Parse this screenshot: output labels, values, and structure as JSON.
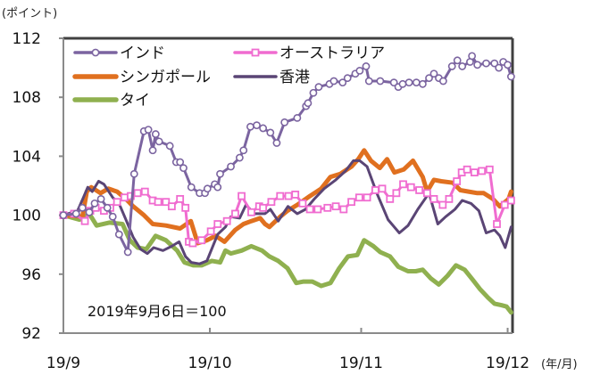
{
  "chart_data": {
    "type": "line",
    "title": "",
    "ylabel": "(ポイント)",
    "xlabel": "(年/月)",
    "ylim": [
      92,
      112
    ],
    "yticks": [
      92,
      96,
      100,
      104,
      108,
      112
    ],
    "ytick_labels": [
      "92",
      "96",
      "100",
      "104",
      "108",
      "112"
    ],
    "xlim": [
      0,
      92
    ],
    "xticks": [
      0,
      30,
      61,
      91
    ],
    "xtick_labels": [
      "19/9",
      "19/10",
      "19/11",
      "19/12"
    ],
    "annotation": "2019年9月6日＝100",
    "legend_position": "top-left",
    "grid": false,
    "series": [
      {
        "name": "インド",
        "color": "#7b64a0",
        "marker": "circle",
        "width": 3,
        "x": [
          0,
          2.6,
          3.9,
          5.3,
          6.4,
          7.7,
          9,
          10.1,
          11.4,
          13.2,
          14.5,
          16.5,
          17.4,
          18.3,
          18.9,
          19.6,
          21.8,
          23.1,
          23.9,
          24.6,
          26.2,
          27.9,
          29,
          29.5,
          31,
          31.6,
          32.1,
          34.3,
          36.1,
          36.9,
          38.3,
          39.6,
          40.9,
          42.4,
          43.7,
          45.3,
          47.9,
          49.7,
          50.1,
          51.2,
          52.3,
          54.5,
          55.4,
          57.2,
          58.2,
          59.8,
          60.7,
          62,
          62.6,
          64.9,
          67.7,
          68.6,
          69.5,
          70.8,
          72.3,
          73.6,
          74.9,
          75.9,
          76.9,
          77.8,
          79.6,
          80.7,
          81.7,
          83.3,
          83.7,
          84.8,
          86.6,
          88.3,
          89.2,
          90.1,
          91,
          91.7
        ],
        "y": [
          100,
          100.1,
          100.5,
          100.2,
          100.8,
          101.1,
          100.5,
          99.9,
          98.7,
          97.5,
          102.8,
          105.7,
          105.8,
          104.4,
          105.5,
          105,
          104.7,
          103.6,
          103.6,
          103.2,
          101.9,
          101.5,
          101.5,
          101.8,
          102.1,
          101.9,
          102.8,
          103.3,
          103.9,
          104.4,
          106,
          106.1,
          105.9,
          105.6,
          104.9,
          106.3,
          106.6,
          107.4,
          107.6,
          108.3,
          108.7,
          108.9,
          109.1,
          109,
          109.3,
          109.6,
          109.8,
          110.1,
          109.1,
          109.1,
          109,
          108.7,
          108.9,
          109,
          109,
          108.9,
          109.3,
          109.6,
          109.3,
          109.1,
          110.1,
          110.5,
          110.1,
          110.4,
          110.8,
          110.2,
          110.3,
          110.3,
          110,
          110.4,
          110.2,
          109.4
        ]
      },
      {
        "name": "オーストラリア",
        "color": "#f06cd0",
        "marker": "square",
        "width": 3,
        "x": [
          0,
          2.2,
          4.4,
          5.5,
          6.6,
          8.3,
          9.6,
          11,
          12.5,
          13.8,
          15.2,
          16.7,
          18.3,
          19.4,
          21,
          22.2,
          23.9,
          25,
          25.7,
          26.5,
          28.3,
          30.2,
          31.6,
          33.5,
          35.2,
          36.5,
          38.5,
          40.1,
          40.9,
          42.6,
          44.4,
          46.1,
          47.5,
          49,
          50.5,
          52.1,
          54.1,
          55.8,
          57.4,
          59,
          60.6,
          62.2,
          63.9,
          65.3,
          66.9,
          68.2,
          69.6,
          71.2,
          72.9,
          74.5,
          75.9,
          77.7,
          79,
          80.6,
          81.6,
          82.7,
          84.2,
          85.7,
          87.3,
          88.8,
          90.4,
          91.7
        ],
        "y": [
          100,
          100.1,
          99.6,
          100.3,
          100.5,
          100.3,
          100.5,
          100.9,
          101.2,
          101.3,
          101.5,
          101.6,
          101,
          100.9,
          100.9,
          100.6,
          101.1,
          100.5,
          98.2,
          98.1,
          98.3,
          98.9,
          99.4,
          99.6,
          100.1,
          101.3,
          100.2,
          100.6,
          100.5,
          100.9,
          101.3,
          101.3,
          101.4,
          100.8,
          100.4,
          100.4,
          100.5,
          100.6,
          100.4,
          100.9,
          101.2,
          101.2,
          101.7,
          101.8,
          101.1,
          101.5,
          102.1,
          101.9,
          101.7,
          101.5,
          101.1,
          100.7,
          101.1,
          102.3,
          102.9,
          103.1,
          102.9,
          103,
          103.1,
          99.4,
          100.7,
          101
        ]
      },
      {
        "name": "シンガポール",
        "color": "#e0701f",
        "marker": "none",
        "width": 5,
        "x": [
          0,
          3.9,
          4.8,
          5.7,
          7.6,
          9.2,
          11,
          12.8,
          14.3,
          16.5,
          18.3,
          21,
          23.9,
          26.1,
          27.5,
          29.4,
          31.2,
          33,
          35.2,
          36.9,
          38.5,
          40.3,
          41.3,
          42.2,
          44.4,
          45.9,
          47.9,
          50.5,
          52.8,
          54.7,
          56.7,
          59,
          60.4,
          61.6,
          63,
          64.8,
          66.3,
          67.8,
          69.7,
          71.6,
          73.6,
          74.5,
          75.9,
          77.4,
          79.8,
          81.3,
          83,
          84.8,
          86.1,
          88,
          89.4,
          91.2,
          91.7
        ],
        "y": [
          100,
          99.9,
          101.6,
          101.9,
          101.5,
          101.8,
          101.6,
          101.1,
          100.6,
          100,
          99.4,
          99.3,
          99.1,
          99.6,
          98.1,
          98.3,
          98.6,
          98.2,
          99,
          99.4,
          99.6,
          99.8,
          99.4,
          99.2,
          99.9,
          100.3,
          100.7,
          101.3,
          101.8,
          102.6,
          102.8,
          103.3,
          103.8,
          104.4,
          103.7,
          103.2,
          103.8,
          102.9,
          103.1,
          103.7,
          102.6,
          101.6,
          102.4,
          102.3,
          102.2,
          101.7,
          101.6,
          101.5,
          101.5,
          101.1,
          100.6,
          101.1,
          101.6
        ]
      },
      {
        "name": "香港",
        "color": "#5a4575",
        "marker": "none",
        "width": 3,
        "x": [
          0,
          2.9,
          4.1,
          5,
          5.9,
          7.2,
          8.3,
          10.1,
          11.4,
          12.8,
          14.3,
          15.8,
          17.2,
          18.5,
          20.4,
          22.2,
          23.7,
          25,
          26.2,
          27.9,
          29.4,
          31.6,
          33.2,
          34.3,
          36.1,
          37.4,
          39.1,
          41.3,
          42.4,
          44,
          46,
          47.9,
          49.6,
          51.4,
          53.4,
          55.8,
          57.8,
          59.4,
          60.7,
          62.2,
          64.2,
          66.5,
          68.8,
          70.6,
          72.6,
          74.9,
          76.7,
          78.3,
          80.2,
          81.7,
          83.5,
          85.1,
          86.6,
          88.3,
          89.4,
          90.5,
          91.7
        ],
        "y": [
          100,
          100.3,
          101.2,
          101.9,
          101.6,
          102.3,
          102.1,
          101.2,
          100.8,
          99.7,
          98.5,
          97.7,
          97.4,
          97.8,
          97.6,
          97.9,
          98.2,
          97.2,
          96.8,
          96.7,
          96.9,
          98.7,
          99.2,
          99.9,
          99.8,
          100.7,
          100.1,
          100.1,
          100.4,
          99.6,
          100.6,
          100.1,
          100.4,
          101.1,
          101.8,
          102.4,
          103,
          103.7,
          103.7,
          103.3,
          101.5,
          99.7,
          98.8,
          99.3,
          100.4,
          101.5,
          99.4,
          99.9,
          100.4,
          101,
          100.8,
          100.3,
          98.8,
          99,
          98.6,
          97.8,
          99.2
        ]
      },
      {
        "name": "タイ",
        "color": "#8fb04f",
        "marker": "none",
        "width": 5,
        "x": [
          0,
          3.3,
          5.3,
          6.8,
          9.4,
          12.1,
          13.6,
          15.2,
          17,
          18.9,
          21,
          23.3,
          24.8,
          26.6,
          28.3,
          30.4,
          32.1,
          33.2,
          34.3,
          36.5,
          38.5,
          40.7,
          42.2,
          44,
          45.9,
          47.7,
          49.2,
          51,
          52.8,
          54.7,
          56.5,
          58.3,
          60.2,
          61.6,
          63.5,
          64.9,
          66.9,
          68.6,
          70.6,
          72.2,
          73.6,
          75.3,
          76.9,
          78.7,
          80.4,
          82.2,
          83.9,
          85.3,
          87,
          88.3,
          89.7,
          90.8,
          91.7
        ],
        "y": [
          100,
          99.7,
          100.1,
          99.3,
          99.5,
          99.4,
          98.3,
          97.8,
          97.7,
          98.6,
          98.3,
          97.6,
          96.8,
          96.6,
          96.6,
          96.9,
          96.8,
          97.6,
          97.4,
          97.6,
          97.9,
          97.6,
          97.2,
          96.9,
          96.4,
          95.4,
          95.5,
          95.5,
          95.2,
          95.4,
          96.4,
          97.2,
          97.3,
          98.3,
          97.9,
          97.5,
          97.2,
          96.5,
          96.2,
          96.2,
          96.3,
          95.7,
          95.3,
          95.9,
          96.6,
          96.3,
          95.6,
          95,
          94.4,
          94,
          93.9,
          93.8,
          93.4
        ]
      }
    ]
  }
}
